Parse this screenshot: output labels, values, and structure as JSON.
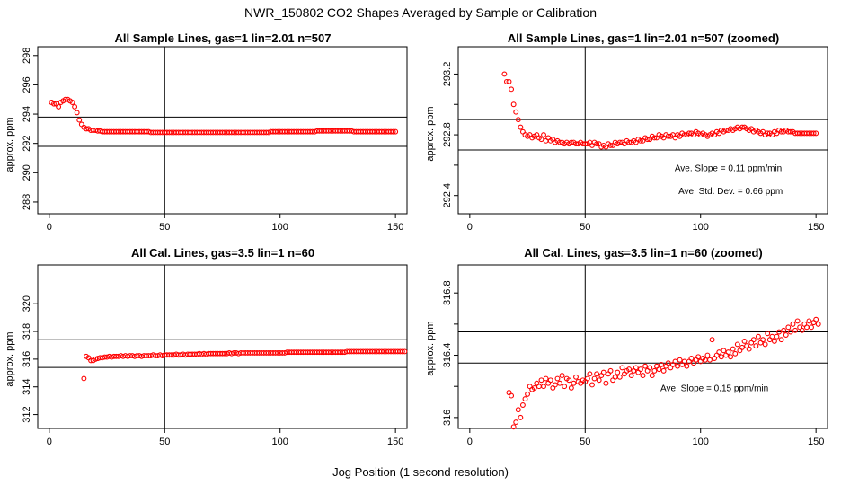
{
  "title": "NWR_150802  CO2 Shapes Averaged by Sample or Calibration",
  "xlabel": "Jog Position (1 second resolution)",
  "colors": {
    "marker": "#ff0000",
    "axis": "#000000"
  },
  "chart_data": [
    {
      "type": "scatter",
      "title": "All Sample Lines, gas=1 lin=2.01 n=507",
      "ylabel": "approx. ppm",
      "xlim": [
        -5,
        155
      ],
      "ylim": [
        287.2,
        298.6
      ],
      "xticks": [
        0,
        50,
        100,
        150
      ],
      "yticks": [
        288,
        290,
        292,
        294,
        296,
        298
      ],
      "hlines": [
        293.8,
        291.8
      ],
      "vline": 50,
      "annotations": [],
      "x_start": 1,
      "values": [
        294.8,
        294.7,
        294.7,
        294.5,
        294.8,
        294.9,
        295.0,
        295.0,
        294.9,
        294.8,
        294.5,
        294.1,
        293.6,
        293.3,
        293.1,
        293.0,
        293.0,
        292.9,
        292.9,
        292.9,
        292.85,
        292.85,
        292.8,
        292.8,
        292.8,
        292.8,
        292.8,
        292.8,
        292.8,
        292.8,
        292.8,
        292.8,
        292.8,
        292.8,
        292.8,
        292.8,
        292.8,
        292.8,
        292.8,
        292.8,
        292.8,
        292.8,
        292.8,
        292.75,
        292.75,
        292.75,
        292.75,
        292.75,
        292.75,
        292.75,
        292.75,
        292.75,
        292.75,
        292.75,
        292.75,
        292.75,
        292.75,
        292.75,
        292.75,
        292.75,
        292.75,
        292.75,
        292.75,
        292.75,
        292.75,
        292.75,
        292.75,
        292.75,
        292.75,
        292.75,
        292.75,
        292.75,
        292.75,
        292.75,
        292.75,
        292.75,
        292.75,
        292.75,
        292.75,
        292.75,
        292.75,
        292.75,
        292.75,
        292.75,
        292.75,
        292.75,
        292.75,
        292.75,
        292.75,
        292.75,
        292.75,
        292.75,
        292.75,
        292.75,
        292.75,
        292.8,
        292.8,
        292.8,
        292.8,
        292.8,
        292.8,
        292.8,
        292.8,
        292.8,
        292.8,
        292.8,
        292.8,
        292.8,
        292.8,
        292.8,
        292.8,
        292.8,
        292.8,
        292.8,
        292.8,
        292.85,
        292.85,
        292.85,
        292.85,
        292.85,
        292.85,
        292.85,
        292.85,
        292.85,
        292.85,
        292.85,
        292.85,
        292.85,
        292.85,
        292.85,
        292.85,
        292.8,
        292.8,
        292.8,
        292.8,
        292.8,
        292.8,
        292.8,
        292.8,
        292.8,
        292.8,
        292.8,
        292.8,
        292.8,
        292.8,
        292.8,
        292.8,
        292.8,
        292.8,
        292.8
      ]
    },
    {
      "type": "scatter",
      "title": "All Sample Lines, gas=1 lin=2.01 n=507 (zoomed)",
      "ylabel": "approx. ppm",
      "xlim": [
        -5,
        155
      ],
      "ylim": [
        292.28,
        293.38
      ],
      "xticks": [
        0,
        50,
        100,
        150
      ],
      "yticks": [
        292.4,
        292.8,
        293.2
      ],
      "yminor": [
        292.6,
        293.0
      ],
      "hlines": [
        292.9,
        292.7
      ],
      "vline": 50,
      "annotations": [
        {
          "text": "Ave. Slope =  0.11  ppm/min",
          "x": 112,
          "y": 292.56
        },
        {
          "text": "Ave. Std. Dev. =  0.66  ppm",
          "x": 113,
          "y": 292.41
        }
      ],
      "x_start": 15,
      "values": [
        293.2,
        293.15,
        293.15,
        293.1,
        293.0,
        292.95,
        292.9,
        292.85,
        292.82,
        292.8,
        292.79,
        292.8,
        292.78,
        292.79,
        292.8,
        292.78,
        292.77,
        292.8,
        292.76,
        292.78,
        292.76,
        292.77,
        292.75,
        292.76,
        292.75,
        292.75,
        292.74,
        292.75,
        292.74,
        292.75,
        292.75,
        292.74,
        292.74,
        292.75,
        292.74,
        292.74,
        292.74,
        292.75,
        292.73,
        292.75,
        292.74,
        292.74,
        292.72,
        292.73,
        292.72,
        292.74,
        292.73,
        292.73,
        292.75,
        292.74,
        292.75,
        292.75,
        292.74,
        292.76,
        292.75,
        292.75,
        292.76,
        292.75,
        292.77,
        292.76,
        292.76,
        292.78,
        292.77,
        292.77,
        292.79,
        292.78,
        292.78,
        292.8,
        292.79,
        292.78,
        292.8,
        292.79,
        292.79,
        292.8,
        292.78,
        292.8,
        292.79,
        292.81,
        292.8,
        292.8,
        292.81,
        292.81,
        292.8,
        292.82,
        292.81,
        292.8,
        292.81,
        292.8,
        292.79,
        292.8,
        292.81,
        292.8,
        292.82,
        292.81,
        292.83,
        292.82,
        292.83,
        292.83,
        292.84,
        292.83,
        292.84,
        292.85,
        292.84,
        292.85,
        292.85,
        292.84,
        292.83,
        292.84,
        292.82,
        292.83,
        292.82,
        292.81,
        292.82,
        292.8,
        292.81,
        292.81,
        292.8,
        292.82,
        292.81,
        292.83,
        292.82,
        292.82,
        292.83,
        292.82,
        292.82,
        292.82,
        292.81,
        292.81,
        292.81,
        292.81,
        292.81,
        292.81,
        292.81,
        292.81,
        292.81,
        292.81
      ]
    },
    {
      "type": "scatter",
      "title": "All Cal. Lines, gas=3.5 lin=1 n=60",
      "ylabel": "approx. ppm",
      "xlim": [
        -5,
        155
      ],
      "ylim": [
        311.0,
        322.8
      ],
      "xticks": [
        0,
        50,
        100,
        150
      ],
      "yticks": [
        312,
        314,
        316,
        318,
        320
      ],
      "hlines": [
        317.4,
        315.4
      ],
      "vline": 50,
      "annotations": [],
      "x_start": 15,
      "values": [
        314.6,
        316.2,
        316.1,
        315.9,
        315.9,
        316.0,
        316.05,
        316.1,
        316.1,
        316.15,
        316.15,
        316.2,
        316.15,
        316.2,
        316.2,
        316.2,
        316.25,
        316.2,
        316.25,
        316.2,
        316.25,
        316.25,
        316.2,
        316.25,
        316.25,
        316.2,
        316.25,
        316.25,
        316.25,
        316.25,
        316.3,
        316.25,
        316.25,
        316.3,
        316.25,
        316.3,
        316.3,
        316.3,
        316.3,
        316.3,
        316.35,
        316.3,
        316.3,
        316.35,
        316.3,
        316.35,
        316.35,
        316.35,
        316.35,
        316.35,
        316.4,
        316.35,
        316.4,
        316.35,
        316.4,
        316.4,
        316.4,
        316.4,
        316.4,
        316.4,
        316.4,
        316.4,
        316.4,
        316.45,
        316.4,
        316.45,
        316.45,
        316.4,
        316.45,
        316.45,
        316.45,
        316.45,
        316.45,
        316.45,
        316.45,
        316.45,
        316.45,
        316.45,
        316.45,
        316.45,
        316.45,
        316.45,
        316.45,
        316.45,
        316.45,
        316.45,
        316.45,
        316.45,
        316.5,
        316.5,
        316.5,
        316.5,
        316.5,
        316.5,
        316.5,
        316.5,
        316.5,
        316.5,
        316.5,
        316.5,
        316.5,
        316.5,
        316.5,
        316.5,
        316.5,
        316.5,
        316.5,
        316.5,
        316.5,
        316.5,
        316.5,
        316.5,
        316.5,
        316.5,
        316.55,
        316.55,
        316.55,
        316.55,
        316.55,
        316.55,
        316.55,
        316.55,
        316.55,
        316.55,
        316.55,
        316.55,
        316.55,
        316.55,
        316.55,
        316.55,
        316.55,
        316.55,
        316.55,
        316.55,
        316.55,
        316.55,
        316.55,
        316.55,
        316.55,
        316.55
      ]
    },
    {
      "type": "scatter",
      "title": "All Cal. Lines, gas=3.5 lin=1 n=60 (zoomed)",
      "ylabel": "approx. ppm",
      "xlim": [
        -5,
        155
      ],
      "ylim": [
        315.93,
        316.98
      ],
      "xticks": [
        0,
        50,
        100,
        150
      ],
      "yticks": [
        316.0,
        316.4,
        316.8
      ],
      "yminor": [
        316.2,
        316.6
      ],
      "hlines": [
        316.55,
        316.35
      ],
      "vline": 50,
      "annotations": [
        {
          "text": "Ave. Slope =  0.15  ppm/min",
          "x": 106,
          "y": 316.17
        }
      ],
      "x_start": 17,
      "values": [
        316.16,
        316.14,
        315.94,
        315.97,
        316.05,
        316.0,
        316.08,
        316.12,
        316.15,
        316.2,
        316.18,
        316.19,
        316.22,
        316.2,
        316.24,
        316.2,
        316.25,
        316.22,
        316.24,
        316.19,
        316.21,
        316.25,
        316.22,
        316.27,
        316.2,
        316.25,
        316.24,
        316.19,
        316.22,
        316.26,
        316.23,
        316.22,
        316.24,
        316.23,
        316.25,
        316.28,
        316.21,
        316.25,
        316.28,
        316.24,
        316.27,
        316.29,
        316.22,
        316.28,
        316.3,
        316.24,
        316.26,
        316.29,
        316.26,
        316.32,
        316.28,
        316.3,
        316.31,
        316.27,
        316.3,
        316.32,
        316.29,
        316.31,
        316.27,
        316.33,
        316.3,
        316.32,
        316.27,
        316.3,
        316.33,
        316.31,
        316.34,
        316.3,
        316.33,
        316.35,
        316.32,
        316.34,
        316.36,
        316.33,
        316.37,
        316.34,
        316.36,
        316.33,
        316.36,
        316.38,
        316.35,
        316.37,
        316.39,
        316.36,
        316.38,
        316.37,
        316.4,
        316.37,
        316.5,
        316.38,
        316.4,
        316.42,
        316.39,
        316.43,
        316.4,
        316.42,
        316.39,
        316.44,
        316.41,
        316.47,
        316.43,
        316.45,
        316.49,
        316.46,
        316.44,
        316.48,
        316.5,
        316.46,
        316.52,
        316.48,
        316.5,
        316.47,
        316.54,
        316.5,
        316.52,
        316.49,
        316.52,
        316.55,
        316.5,
        316.56,
        316.53,
        316.58,
        316.55,
        316.6,
        316.56,
        316.62,
        316.58,
        316.56,
        316.6,
        316.58,
        316.62,
        316.58,
        316.61,
        316.63,
        316.6
      ]
    }
  ]
}
